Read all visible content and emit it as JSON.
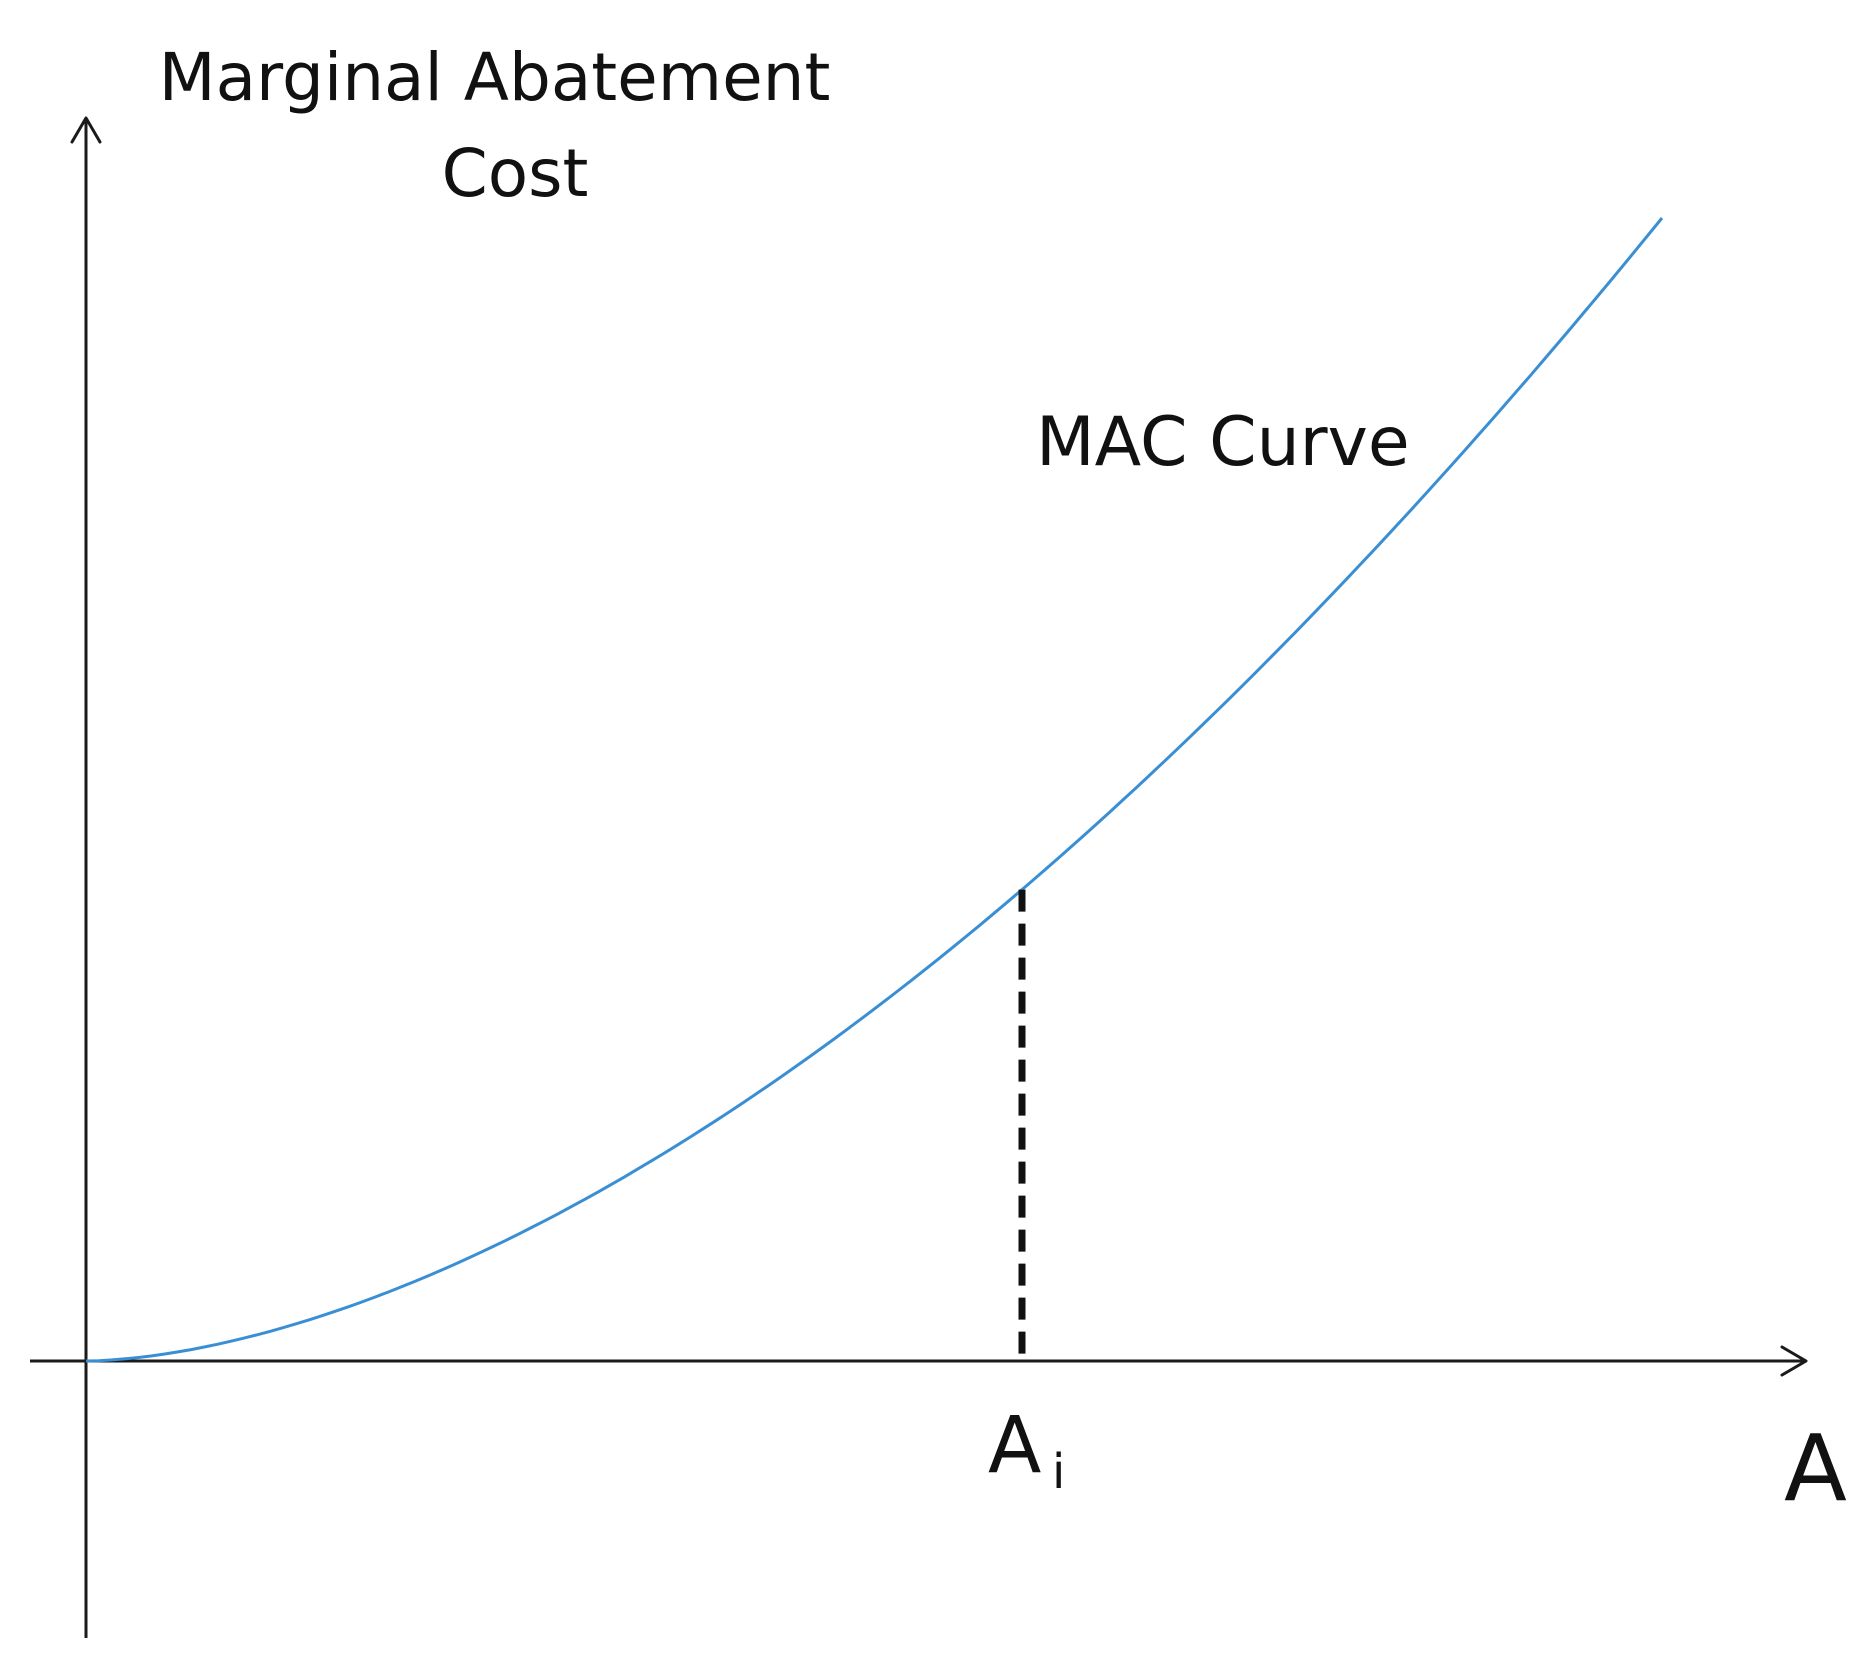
{
  "chart_data": {
    "type": "line",
    "title": "",
    "ylabel_lines": [
      "Marginal Abatement",
      "Cost"
    ],
    "xlabel": "A",
    "series": [
      {
        "name": "MAC Curve",
        "shape": "convex, increasing from origin"
      }
    ],
    "marker": {
      "label": "A",
      "subscript": "i"
    },
    "grid": false,
    "legend": "none",
    "curve_color": "#3a8fd4"
  }
}
